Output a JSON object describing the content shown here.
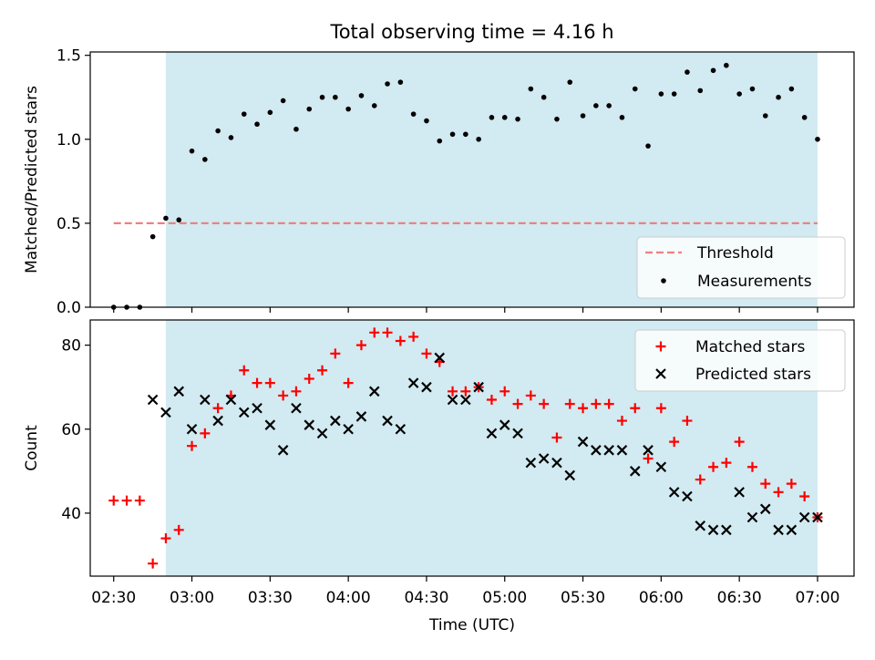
{
  "figure": {
    "title": "Total observing time = 4.16 h",
    "xlabel": "Time (UTC)",
    "colors": {
      "shade": "#add8e6",
      "threshold": "#f08080",
      "matched": "#ff0000",
      "predicted": "#000000",
      "measurement": "#000000"
    }
  },
  "chart_data": [
    {
      "type": "scatter",
      "panel": "top",
      "ylabel": "Matched/Predicted stars",
      "xlim": [
        "02:21",
        "07:14"
      ],
      "ylim": [
        0,
        1.52
      ],
      "yticks": [
        "0.0",
        "0.5",
        "1.0",
        "1.5"
      ],
      "shaded_interval": [
        "02:50",
        "07:00"
      ],
      "legend_position": "lower right",
      "threshold": {
        "name": "Threshold",
        "value": 0.5,
        "x_range": [
          "02:30",
          "07:00"
        ]
      },
      "series": [
        {
          "name": "Measurements",
          "x": [
            "02:30",
            "02:35",
            "02:40",
            "02:45",
            "02:50",
            "02:55",
            "03:00",
            "03:05",
            "03:10",
            "03:15",
            "03:20",
            "03:25",
            "03:30",
            "03:35",
            "03:40",
            "03:45",
            "03:50",
            "03:55",
            "04:00",
            "04:05",
            "04:10",
            "04:15",
            "04:20",
            "04:25",
            "04:30",
            "04:35",
            "04:40",
            "04:45",
            "04:50",
            "04:55",
            "05:00",
            "05:05",
            "05:10",
            "05:15",
            "05:20",
            "05:25",
            "05:30",
            "05:35",
            "05:40",
            "05:45",
            "05:50",
            "05:55",
            "06:00",
            "06:05",
            "06:10",
            "06:15",
            "06:20",
            "06:25",
            "06:30",
            "06:35",
            "06:40",
            "06:45",
            "06:50",
            "06:55",
            "07:00"
          ],
          "y": [
            0.0,
            0.0,
            0.0,
            0.42,
            0.53,
            0.52,
            0.93,
            0.88,
            1.05,
            1.01,
            1.15,
            1.09,
            1.16,
            1.23,
            1.06,
            1.18,
            1.25,
            1.25,
            1.18,
            1.26,
            1.2,
            1.33,
            1.34,
            1.15,
            1.11,
            0.99,
            1.03,
            1.03,
            1.0,
            1.13,
            1.13,
            1.12,
            1.3,
            1.25,
            1.12,
            1.34,
            1.14,
            1.2,
            1.2,
            1.13,
            1.3,
            0.96,
            1.27,
            1.27,
            1.4,
            1.29,
            1.41,
            1.44,
            1.27,
            1.3,
            1.14,
            1.25,
            1.3,
            1.13,
            1.0
          ]
        }
      ]
    },
    {
      "type": "scatter",
      "panel": "bottom",
      "ylabel": "Count",
      "xlim": [
        "02:21",
        "07:14"
      ],
      "ylim": [
        25,
        86
      ],
      "yticks": [
        "40",
        "60",
        "80"
      ],
      "xticks": [
        "02:30",
        "03:00",
        "03:30",
        "04:00",
        "04:30",
        "05:00",
        "05:30",
        "06:00",
        "06:30",
        "07:00"
      ],
      "shaded_interval": [
        "02:50",
        "07:00"
      ],
      "legend_position": "upper right",
      "series": [
        {
          "name": "Matched stars",
          "marker": "plus",
          "x": [
            "02:30",
            "02:35",
            "02:40",
            "02:45",
            "02:50",
            "02:55",
            "03:00",
            "03:05",
            "03:10",
            "03:15",
            "03:20",
            "03:25",
            "03:30",
            "03:35",
            "03:40",
            "03:45",
            "03:50",
            "03:55",
            "04:00",
            "04:05",
            "04:10",
            "04:15",
            "04:20",
            "04:25",
            "04:30",
            "04:35",
            "04:40",
            "04:45",
            "04:50",
            "04:55",
            "05:00",
            "05:05",
            "05:10",
            "05:15",
            "05:20",
            "05:25",
            "05:30",
            "05:35",
            "05:40",
            "05:45",
            "05:50",
            "05:55",
            "06:00",
            "06:05",
            "06:10",
            "06:15",
            "06:20",
            "06:25",
            "06:30",
            "06:35",
            "06:40",
            "06:45",
            "06:50",
            "06:55",
            "07:00"
          ],
          "y": [
            43,
            43,
            43,
            28,
            34,
            36,
            56,
            59,
            65,
            68,
            74,
            71,
            71,
            68,
            69,
            72,
            74,
            78,
            71,
            80,
            83,
            83,
            81,
            82,
            78,
            76,
            69,
            69,
            70,
            67,
            69,
            66,
            68,
            66,
            58,
            66,
            65,
            66,
            66,
            62,
            65,
            53,
            65,
            57,
            62,
            48,
            51,
            52,
            57,
            51,
            47,
            45,
            47,
            44,
            39
          ]
        },
        {
          "name": "Predicted stars",
          "marker": "x",
          "x": [
            "02:45",
            "02:50",
            "02:55",
            "03:00",
            "03:05",
            "03:10",
            "03:15",
            "03:20",
            "03:25",
            "03:30",
            "03:35",
            "03:40",
            "03:45",
            "03:50",
            "03:55",
            "04:00",
            "04:05",
            "04:10",
            "04:15",
            "04:20",
            "04:25",
            "04:30",
            "04:35",
            "04:40",
            "04:45",
            "04:50",
            "04:55",
            "05:00",
            "05:05",
            "05:10",
            "05:15",
            "05:20",
            "05:25",
            "05:30",
            "05:35",
            "05:40",
            "05:45",
            "05:50",
            "05:55",
            "06:00",
            "06:05",
            "06:10",
            "06:15",
            "06:20",
            "06:25",
            "06:30",
            "06:35",
            "06:40",
            "06:45",
            "06:50",
            "06:55",
            "07:00"
          ],
          "y": [
            67,
            64,
            69,
            60,
            67,
            62,
            67,
            64,
            65,
            61,
            55,
            65,
            61,
            59,
            62,
            60,
            63,
            69,
            62,
            60,
            71,
            70,
            77,
            67,
            67,
            70,
            59,
            61,
            59,
            52,
            53,
            52,
            49,
            57,
            55,
            55,
            55,
            50,
            55,
            51,
            45,
            44,
            37,
            36,
            36,
            45,
            39,
            41,
            36,
            36,
            39,
            39
          ]
        }
      ]
    }
  ]
}
